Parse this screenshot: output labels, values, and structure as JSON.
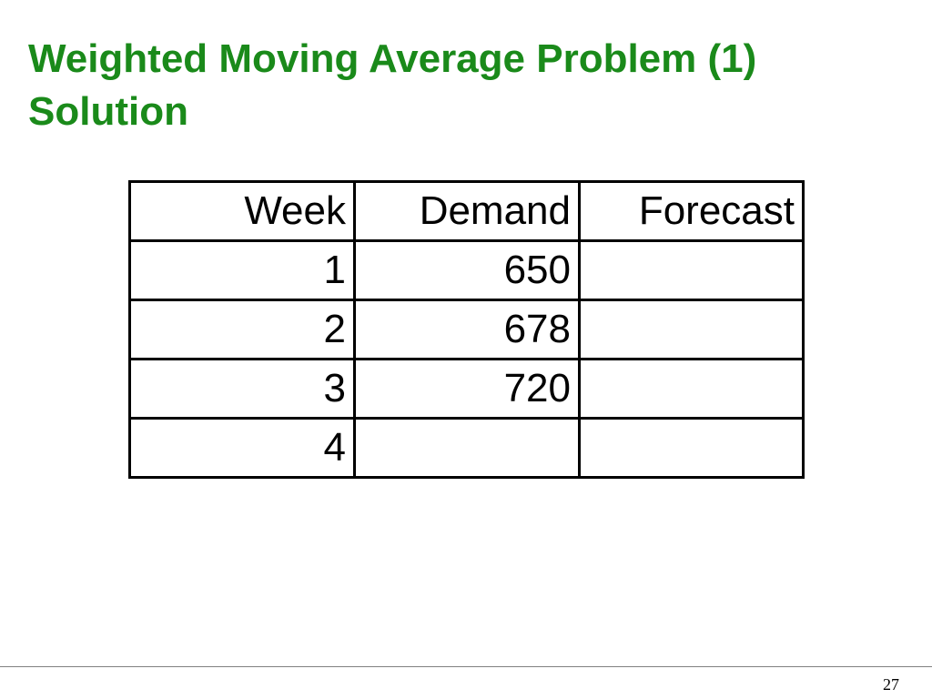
{
  "slide": {
    "title_line1": "Weighted Moving Average Problem (1)",
    "title_line2": "Solution",
    "title_color": "#1a8a1a",
    "page_number": "27"
  },
  "table": {
    "headers": [
      "Week",
      "Demand",
      "Forecast"
    ],
    "rows": [
      [
        "1",
        "650",
        ""
      ],
      [
        "2",
        "678",
        ""
      ],
      [
        "3",
        "720",
        ""
      ],
      [
        "4",
        "",
        ""
      ]
    ]
  }
}
